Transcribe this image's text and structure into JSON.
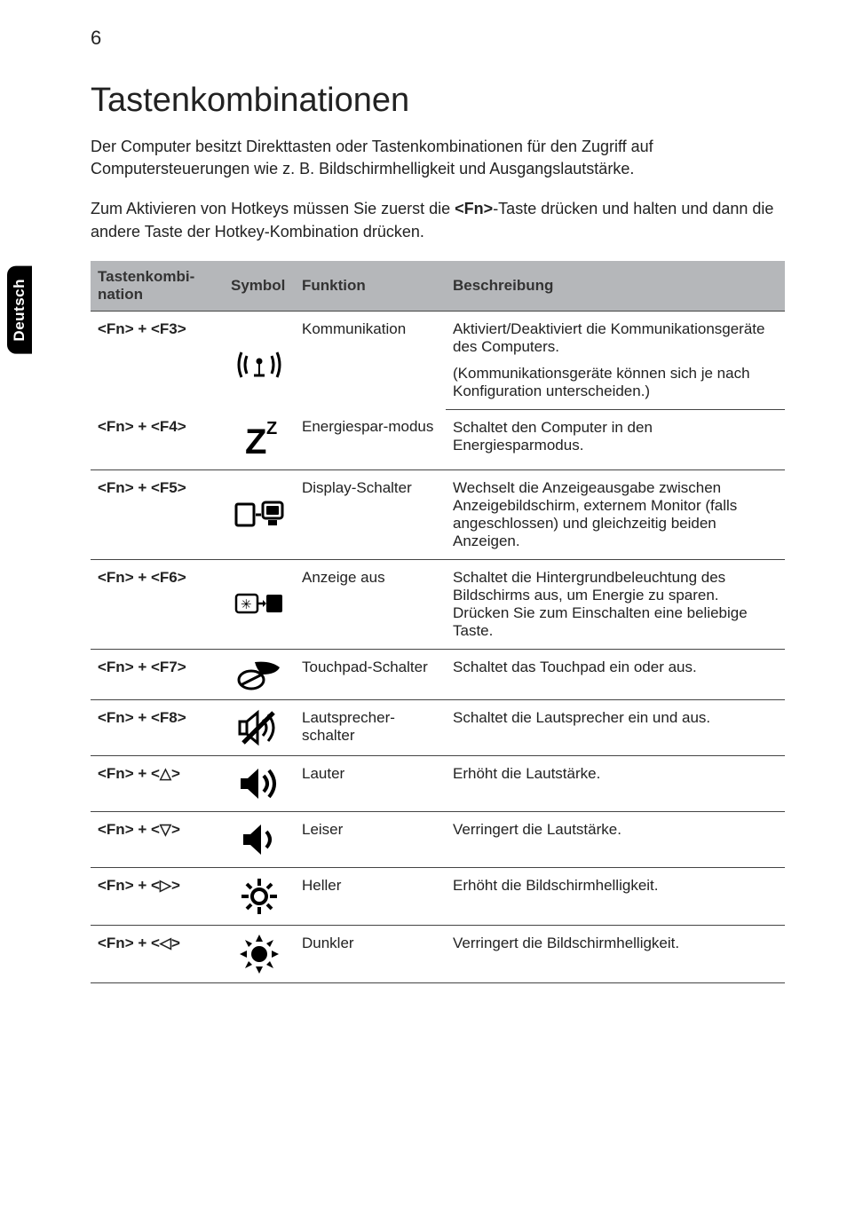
{
  "side_tab": "Deutsch",
  "page_number": "6",
  "heading": "Tastenkombinationen",
  "intro_1": "Der Computer besitzt Direkttasten oder Tastenkombinationen für den Zugriff auf Computersteuerungen wie z. B. Bildschirmhelligkeit und Ausgangslautstärke.",
  "intro_2a": "Zum Aktivieren von Hotkeys müssen Sie zuerst die ",
  "intro_2_key": "<Fn>",
  "intro_2b": "-Taste drücken und halten und dann die andere Taste der Hotkey-Kombination drücken.",
  "table": {
    "headers": {
      "keycombo": "Tastenkombi-nation",
      "symbol": "Symbol",
      "function": "Funktion",
      "description": "Beschreibung"
    },
    "rows": [
      {
        "key": "<Fn> + <F3>",
        "icon": "wireless",
        "func": "Kommunikation",
        "desc": "Aktiviert/Deaktiviert die Kommunikationsgeräte des Computers.",
        "desc2": "(Kommunikationsgeräte können sich je nach Konfiguration unterscheiden.)"
      },
      {
        "key": "<Fn> + <F4>",
        "icon": "sleep",
        "func": "Energiespar-modus",
        "desc": "Schaltet den Computer in den Energiesparmodus."
      },
      {
        "key": "<Fn> + <F5>",
        "icon": "display-switch",
        "func": "Display-Schalter",
        "desc": "Wechselt die Anzeigeausgabe zwischen Anzeigebildschirm, externem Monitor (falls angeschlossen) und gleichzeitig beiden Anzeigen."
      },
      {
        "key": "<Fn> + <F6>",
        "icon": "display-off",
        "func": "Anzeige aus",
        "desc": "Schaltet die Hintergrundbeleuchtung des Bildschirms aus, um Energie zu sparen. Drücken Sie zum Einschalten eine beliebige Taste."
      },
      {
        "key": "<Fn> + <F7>",
        "icon": "touchpad",
        "func": "Touchpad-Schalter",
        "desc": "Schaltet das Touchpad ein oder aus."
      },
      {
        "key": "<Fn> + <F8>",
        "icon": "speaker-mute",
        "func": "Lautsprecher-schalter",
        "desc": "Schaltet die Lautsprecher ein und aus."
      },
      {
        "key": "<Fn> + <△>",
        "icon": "vol-up",
        "func": "Lauter",
        "desc": "Erhöht die Lautstärke."
      },
      {
        "key": "<Fn> + <▽>",
        "icon": "vol-down",
        "func": "Leiser",
        "desc": "Verringert die Lautstärke."
      },
      {
        "key": "<Fn> + <▷>",
        "icon": "bright-up",
        "func": "Heller",
        "desc": "Erhöht die Bildschirmhelligkeit."
      },
      {
        "key": "<Fn> + <◁>",
        "icon": "bright-down",
        "func": "Dunkler",
        "desc": "Verringert die Bildschirmhelligkeit."
      }
    ]
  },
  "icons": {
    "wireless": "<svg width='52' height='44' viewBox='0 0 52 44'><g fill='none' stroke='#000' stroke-width='3'><path d='M6 8 Q0 22 6 36'/><path d='M12 12 Q8 22 12 32'/><path d='M40 12 Q44 22 40 32'/><path d='M46 8 Q52 22 46 36'/></g><circle cx='26' cy='18' r='3.5' fill='#000'/><rect x='25' y='18' width='2' height='16' fill='#000'/><path d='M20 34 L32 34' stroke='#000' stroke-width='3'/></svg>",
    "sleep": "<svg width='48' height='48' viewBox='0 0 48 48'><text x='8' y='40' font-size='40' font-family='Arial' font-weight='700' fill='#000'>Z</text><text x='32' y='18' font-size='20' font-family='Arial' font-weight='700' fill='#000'>Z</text></svg>",
    "display-switch": "<svg width='56' height='36' viewBox='0 0 56 36'><rect x='2' y='6' width='20' height='24' rx='2' fill='none' stroke='#000' stroke-width='3'/><line x1='24' y1='18' x2='30' y2='18' stroke='#000' stroke-width='3'/><rect x='32' y='4' width='22' height='18' rx='3' fill='none' stroke='#000' stroke-width='3'/><rect x='36' y='8' width='14' height='10' rx='1' fill='#000'/><rect x='38' y='24' width='10' height='6' fill='#000'/></svg>",
    "display-off": "<svg width='56' height='30' viewBox='0 0 56 30'><rect x='2' y='4' width='24' height='20' rx='3' fill='none' stroke='#000' stroke-width='2.5'/><text x='7' y='20' font-size='15' fill='#000'>✳</text><path d='M26 14 L34 14' stroke='#000' stroke-width='2.5'/><path d='M32 10 L36 14 L32 18' fill='#000'/><rect x='36' y='4' width='18' height='20' rx='2' fill='#000'/></svg>",
    "touchpad": "<svg width='50' height='36' viewBox='0 0 50 36'><ellipse cx='16' cy='24' rx='14' ry='10' fill='none' stroke='#000' stroke-width='3'/><line x1='4' y1='30' x2='28' y2='18' stroke='#000' stroke-width='3'/><path d='M20 4 Q38 2 48 10 Q44 18 28 18 Q22 12 20 4 Z' fill='#000'/></svg>",
    "speaker-mute": "<svg width='48' height='42' viewBox='0 0 48 42'><rect x='2' y='14' width='8' height='14' fill='none' stroke='#000' stroke-width='3'/><path d='M10 14 L22 4 L22 38 L10 28 Z' fill='none' stroke='#000' stroke-width='3'/><line x1='6' y1='38' x2='40' y2='4' stroke='#000' stroke-width='5'/><path d='M28 12 Q36 21 28 30' fill='none' stroke='#000' stroke-width='3'/><path d='M34 6 Q46 21 34 36' fill='none' stroke='#000' stroke-width='3'/></svg>",
    "vol-up": "<svg width='50' height='42' viewBox='0 0 50 42'><path d='M4 15 L12 15 L24 4 L24 38 L12 27 L4 27 Z' fill='#000'/><path d='M30 12 Q38 21 30 30' fill='none' stroke='#000' stroke-width='4'/><path d='M36 6 Q48 21 36 36' fill='none' stroke='#000' stroke-width='4'/></svg>",
    "vol-down": "<svg width='44' height='42' viewBox='0 0 44 42'><path d='M4 15 L12 15 L24 4 L24 38 L12 27 L4 27 Z' fill='#000'/><path d='M30 12 Q38 21 30 30' fill='none' stroke='#000' stroke-width='4'/></svg>",
    "bright-up": "<svg width='44' height='44' viewBox='0 0 44 44'><circle cx='22' cy='22' r='8' fill='none' stroke='#000' stroke-width='4'/><g stroke='#000' stroke-width='4'><line x1='22' y1='2' x2='22' y2='10'/><line x1='22' y1='34' x2='22' y2='42'/><line x1='2' y1='22' x2='10' y2='22'/><line x1='34' y1='22' x2='42' y2='22'/><line x1='8' y1='8' x2='13' y2='13'/><line x1='31' y1='31' x2='36' y2='36'/><line x1='8' y1='36' x2='13' y2='31'/><line x1='31' y1='13' x2='36' y2='8'/></g></svg>",
    "bright-down": "<svg width='44' height='44' viewBox='0 0 44 44'><circle cx='22' cy='22' r='9' fill='#000'/><g fill='#000'><path d='M22 0 L26 8 L18 8 Z'/><path d='M22 44 L26 36 L18 36 Z'/><path d='M0 22 L8 18 L8 26 Z'/><path d='M44 22 L36 18 L36 26 Z'/><path d='M6 6 L14 10 L10 14 Z'/><path d='M38 38 L30 34 L34 30 Z'/><path d='M6 38 L10 30 L14 34 Z'/><path d='M38 6 L34 14 L30 10 Z'/></g></svg>"
  }
}
